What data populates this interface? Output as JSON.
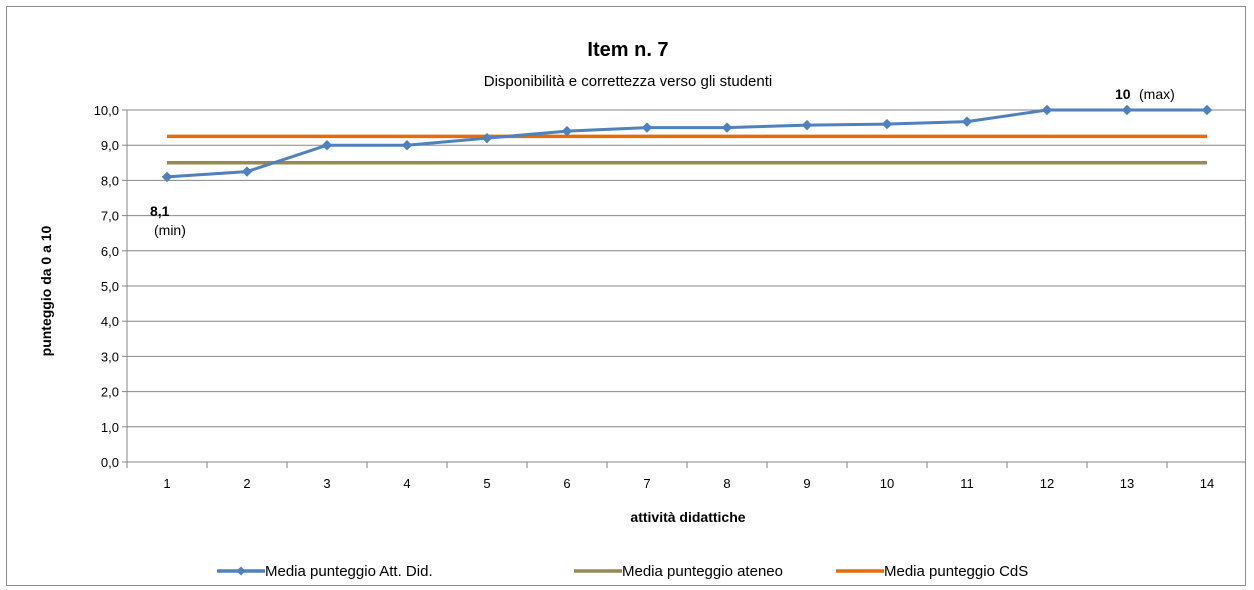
{
  "chart_data": {
    "type": "line",
    "title": "Item n. 7",
    "subtitle": "Disponibilità e correttezza verso gli studenti",
    "xlabel": "attività didattiche",
    "ylabel": "punteggio da 0 a 10",
    "ylim": [
      0,
      10
    ],
    "ytick_step": 1,
    "ytick_labels": [
      "0,0",
      "1,0",
      "2,0",
      "3,0",
      "4,0",
      "5,0",
      "6,0",
      "7,0",
      "8,0",
      "9,0",
      "10,0"
    ],
    "categories": [
      "1",
      "2",
      "3",
      "4",
      "5",
      "6",
      "7",
      "8",
      "9",
      "10",
      "11",
      "12",
      "13",
      "14"
    ],
    "grid": true,
    "legend_position": "bottom",
    "series": [
      {
        "name": "Media punteggio Att. Did.",
        "color": "#4f81bd",
        "marker": "diamond",
        "values": [
          8.1,
          8.25,
          9.0,
          9.0,
          9.2,
          9.4,
          9.5,
          9.5,
          9.57,
          9.6,
          9.67,
          10.0,
          10.0,
          10.0
        ]
      },
      {
        "name": "Media punteggio ateneo",
        "color": "#948a54",
        "marker": "none",
        "values": [
          8.5,
          8.5,
          8.5,
          8.5,
          8.5,
          8.5,
          8.5,
          8.5,
          8.5,
          8.5,
          8.5,
          8.5,
          8.5,
          8.5
        ]
      },
      {
        "name": "Media punteggio CdS",
        "color": "#e46c0a",
        "marker": "none",
        "values": [
          9.25,
          9.25,
          9.25,
          9.25,
          9.25,
          9.25,
          9.25,
          9.25,
          9.25,
          9.25,
          9.25,
          9.25,
          9.25,
          9.25
        ]
      }
    ],
    "annotations": {
      "min": {
        "value_text": "8,1",
        "label": "(min)",
        "index": 0
      },
      "max": {
        "value_text": "10",
        "label": "(max)",
        "index": 12
      }
    }
  }
}
